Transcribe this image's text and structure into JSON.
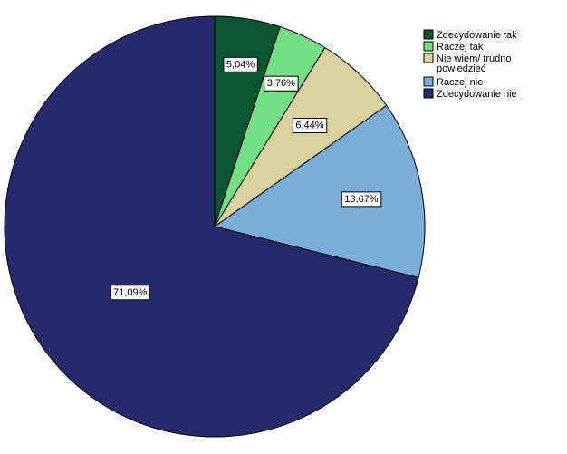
{
  "chart_data": {
    "type": "pie",
    "categories": [
      "Zdecydowanie tak",
      "Raczej tak",
      "Nie wiem/ trudno powiedzieć",
      "Raczej nie",
      "Zdecydowanie nie"
    ],
    "legend_lines": [
      [
        "Zdecydowanie tak"
      ],
      [
        "Raczej tak"
      ],
      [
        "Nie wiem/ trudno",
        "powiedzieć"
      ],
      [
        "Raczej nie"
      ],
      [
        "Zdecydowanie nie"
      ]
    ],
    "values": [
      5.04,
      3.76,
      6.44,
      13.67,
      71.09
    ],
    "labels": [
      "5,04%",
      "3,76%",
      "6,44%",
      "13,67%",
      "71,09%"
    ],
    "colors": [
      "#0b5530",
      "#73de83",
      "#d8d29e",
      "#7badd9",
      "#262a6d"
    ],
    "start_angle": "12 o'clock",
    "direction": "clockwise",
    "legend_position": "top-right",
    "title": ""
  }
}
